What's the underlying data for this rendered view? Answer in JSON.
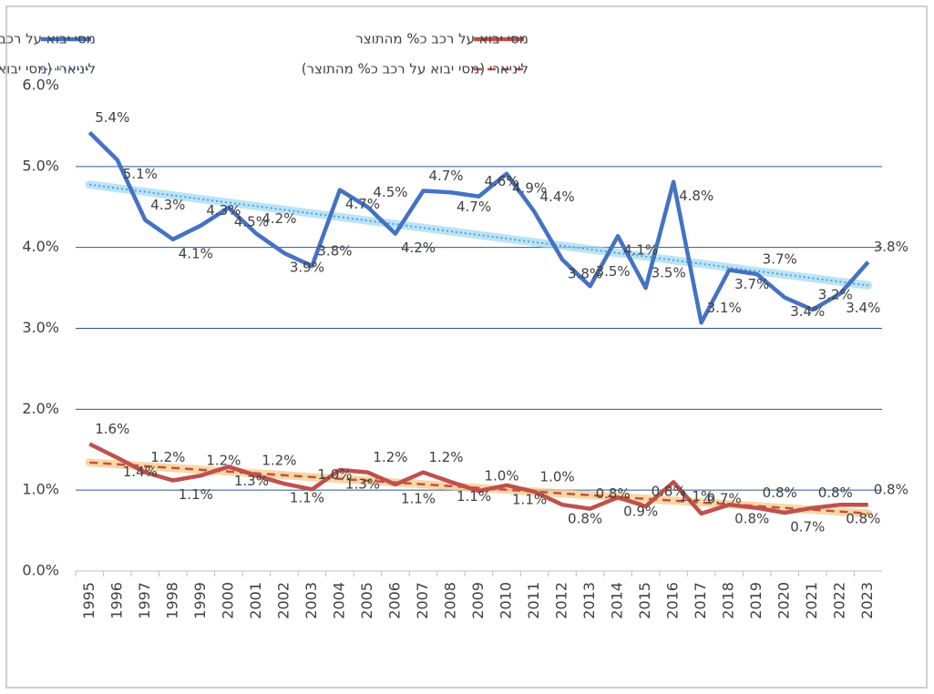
{
  "chart_data": {
    "type": "line",
    "categories": [
      "1995",
      "1996",
      "1997",
      "1998",
      "1999",
      "2000",
      "2001",
      "2002",
      "2003",
      "2004",
      "2005",
      "2006",
      "2007",
      "2008",
      "2009",
      "2010",
      "2011",
      "2012",
      "2013",
      "2014",
      "2015",
      "2016",
      "2017",
      "2018",
      "2019",
      "2020",
      "2021",
      "2022",
      "2023"
    ],
    "series": [
      {
        "name": "מסי יבוא על רכב כאחוז מסך גביית המסים",
        "color": "#4472c4",
        "values": [
          5.42,
          5.08,
          4.34,
          4.1,
          4.27,
          4.49,
          4.17,
          3.93,
          3.77,
          4.71,
          4.5,
          4.17,
          4.7,
          4.68,
          4.63,
          4.91,
          4.44,
          3.85,
          3.52,
          4.14,
          3.5,
          4.81,
          3.07,
          3.72,
          3.67,
          3.38,
          3.23,
          3.43,
          3.82
        ],
        "value_labels": [
          "5.4%",
          "5.1%",
          "4.3%",
          "4.1%",
          "4.3%",
          "4.5%",
          "4.2%",
          "3.9%",
          "3.8%",
          "4.7%",
          "4.5%",
          "4.2%",
          "4.7%",
          "4.7%",
          "4.6%",
          "4.9%",
          "4.4%",
          "3.8%",
          "3.5%",
          "4.1%",
          "3.5%",
          "4.8%",
          "3.1%",
          "3.7%",
          "3.7%",
          "3.4%",
          "3.2%",
          "3.4%",
          "3.8%"
        ],
        "trendline": {
          "name": "ליניארי (מסי יבוא על רכב כאחוז מסך גביית המסים)",
          "color": "#5b9bd5",
          "style": "dotted"
        }
      },
      {
        "name": "מסי יבוא על רכב כ% מהתוצר",
        "color": "#c0504d",
        "values": [
          1.57,
          1.4,
          1.22,
          1.12,
          1.18,
          1.29,
          1.18,
          1.08,
          1.01,
          1.25,
          1.22,
          1.07,
          1.22,
          1.1,
          0.99,
          1.06,
          0.98,
          0.82,
          0.77,
          0.91,
          0.8,
          1.1,
          0.71,
          0.82,
          0.78,
          0.72,
          0.78,
          0.82,
          0.82
        ],
        "value_labels": [
          "1.6%",
          "1.4%",
          "1.2%",
          "1.1%",
          "1.2%",
          "1.3%",
          "1.2%",
          "1.1%",
          "1.0%",
          "1.3%",
          "1.2%",
          "1.1%",
          "1.2%",
          "1.1%",
          "1.0%",
          "1.1%",
          "1.0%",
          "0.8%",
          "0.8%",
          "0.9%",
          "0.8%",
          "1.1%",
          "0.7%",
          "0.8%",
          "0.8%",
          "0.7%",
          "0.8%",
          "0.8%",
          "0.8%"
        ],
        "trendline": {
          "name": "ליניארי (מסי יבוא על רכב כ% מהתוצר)",
          "color": "#c0504d",
          "style": "dashed"
        }
      }
    ],
    "ylim": [
      0,
      6
    ],
    "yticks": [
      {
        "value": 0,
        "label": "0.0%"
      },
      {
        "value": 1,
        "label": "1.0%"
      },
      {
        "value": 2,
        "label": "2.0%"
      },
      {
        "value": 3,
        "label": "3.0%"
      },
      {
        "value": 4,
        "label": "4.0%"
      },
      {
        "value": 5,
        "label": "5.0%"
      },
      {
        "value": 6,
        "label": "6.0%"
      }
    ],
    "grid": true
  }
}
